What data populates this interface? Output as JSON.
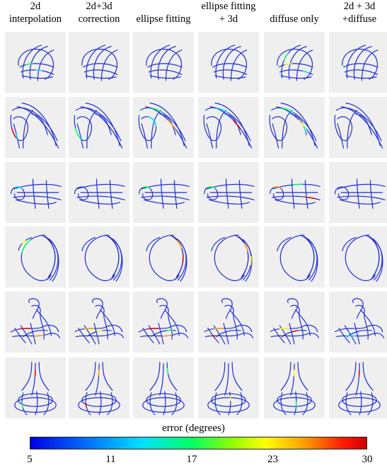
{
  "columns": [
    {
      "label": "2d\ninterpolation"
    },
    {
      "label": "2d+3d\ncorrection"
    },
    {
      "label": "ellipse fitting"
    },
    {
      "label": "ellipse fitting\n+ 3d"
    },
    {
      "label": "diffuse only"
    },
    {
      "label": "2d + 3d\n+diffuse"
    }
  ],
  "rows": [
    {
      "shape": "sphere"
    },
    {
      "shape": "loops"
    },
    {
      "shape": "cylinder"
    },
    {
      "shape": "crescent"
    },
    {
      "shape": "duck"
    },
    {
      "shape": "vase"
    }
  ],
  "colorbar": {
    "title": "error (degrees)",
    "ticks": [
      "5",
      "11",
      "17",
      "23",
      "30"
    ],
    "min": 5,
    "max": 30
  },
  "colors": {
    "stroke_base": "#1f2fd6",
    "error_scale": [
      "#0000e6",
      "#00e0ff",
      "#00ff64",
      "#ffff00",
      "#ff9a00",
      "#e00000"
    ]
  }
}
